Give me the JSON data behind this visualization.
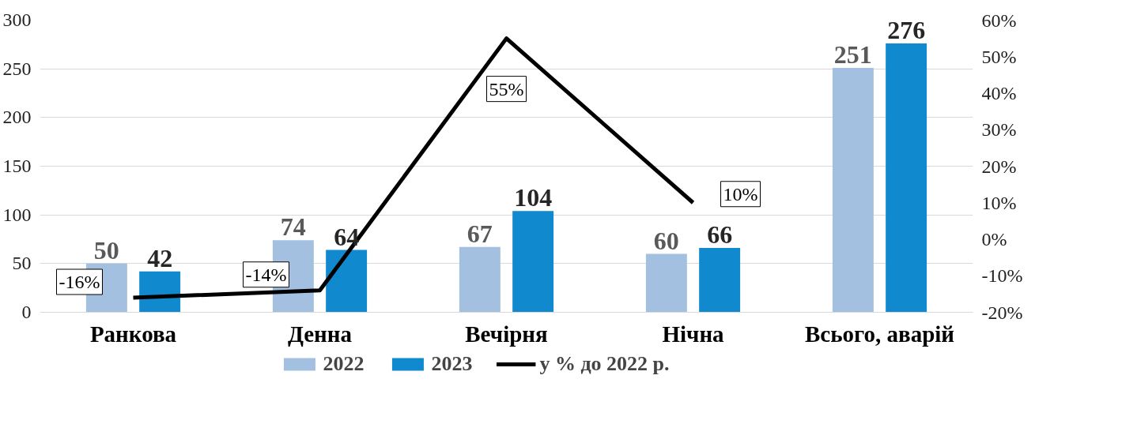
{
  "chart_data": {
    "type": "bar",
    "categories": [
      "Ранкова",
      "Денна",
      "Вечірня",
      "Нічна",
      "Всього, аварій"
    ],
    "series": [
      {
        "name": "2022",
        "color": "#a3c0e0",
        "values": [
          50,
          74,
          67,
          60,
          251
        ]
      },
      {
        "name": "2023",
        "color": "#1089cf",
        "values": [
          42,
          64,
          104,
          66,
          276
        ]
      },
      {
        "name": "у % до 2022 р.",
        "type": "line",
        "axis": "y2",
        "color": "#000000",
        "values": [
          -16,
          -14,
          55,
          10,
          null
        ],
        "value_labels": [
          "-16%",
          "-14%",
          "55%",
          "10%",
          null
        ]
      }
    ],
    "ylim": [
      0,
      300
    ],
    "yticks": [
      0,
      50,
      100,
      150,
      200,
      250,
      300
    ],
    "y2lim": [
      -20,
      60
    ],
    "y2ticks": [
      {
        "value": -20,
        "label": "-20%"
      },
      {
        "value": -10,
        "label": "-10%"
      },
      {
        "value": 0,
        "label": "0%"
      },
      {
        "value": 10,
        "label": "10%"
      },
      {
        "value": 20,
        "label": "20%"
      },
      {
        "value": 30,
        "label": "30%"
      },
      {
        "value": 40,
        "label": "40%"
      },
      {
        "value": 50,
        "label": "50%"
      },
      {
        "value": 60,
        "label": "60%"
      }
    ],
    "data_labels": true,
    "grid": "y",
    "legend": "bottom"
  }
}
